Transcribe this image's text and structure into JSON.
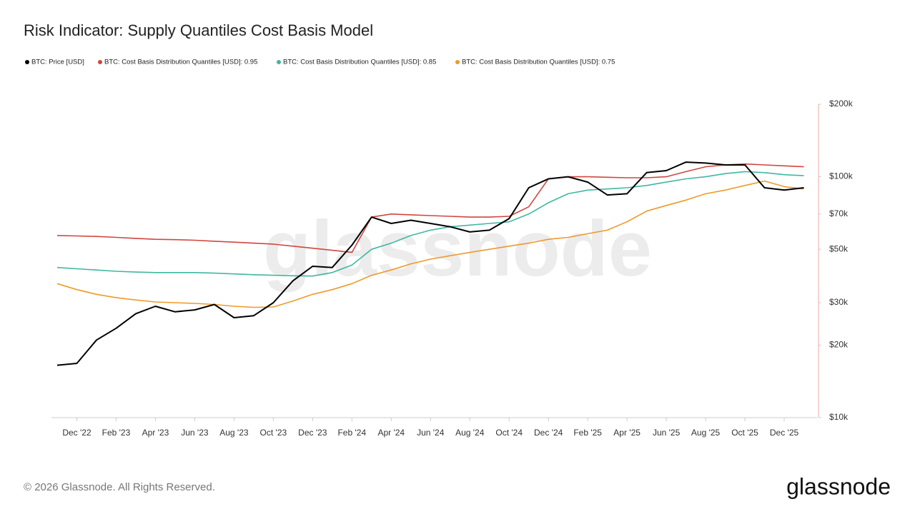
{
  "chart_data": {
    "type": "line",
    "title": "Risk Indicator: Supply Quantiles Cost Basis Model",
    "watermark": "glassnode",
    "copyright": "© 2026 Glassnode. All Rights Reserved.",
    "logo": "glassnode",
    "log_scale": true,
    "x": [
      "2022-11",
      "2022-12",
      "2023-01",
      "2023-02",
      "2023-03",
      "2023-04",
      "2023-05",
      "2023-06",
      "2023-07",
      "2023-08",
      "2023-09",
      "2023-10",
      "2023-11",
      "2023-12",
      "2024-01",
      "2024-02",
      "2024-03",
      "2024-04",
      "2024-05",
      "2024-06",
      "2024-07",
      "2024-08",
      "2024-09",
      "2024-10",
      "2024-11",
      "2024-12",
      "2025-01",
      "2025-02",
      "2025-03",
      "2025-04",
      "2025-05",
      "2025-06",
      "2025-07",
      "2025-08",
      "2025-09",
      "2025-10",
      "2025-11",
      "2025-12",
      "2026-01"
    ],
    "xlim": [
      "2022-11",
      "2026-02"
    ],
    "xticks": [
      {
        "value": "2022-12",
        "label": "Dec '22"
      },
      {
        "value": "2023-02",
        "label": "Feb '23"
      },
      {
        "value": "2023-04",
        "label": "Apr '23"
      },
      {
        "value": "2023-06",
        "label": "Jun '23"
      },
      {
        "value": "2023-08",
        "label": "Aug '23"
      },
      {
        "value": "2023-10",
        "label": "Oct '23"
      },
      {
        "value": "2023-12",
        "label": "Dec '23"
      },
      {
        "value": "2024-02",
        "label": "Feb '24"
      },
      {
        "value": "2024-04",
        "label": "Apr '24"
      },
      {
        "value": "2024-06",
        "label": "Jun '24"
      },
      {
        "value": "2024-08",
        "label": "Aug '24"
      },
      {
        "value": "2024-10",
        "label": "Oct '24"
      },
      {
        "value": "2024-12",
        "label": "Dec '24"
      },
      {
        "value": "2025-02",
        "label": "Feb '25"
      },
      {
        "value": "2025-04",
        "label": "Apr '25"
      },
      {
        "value": "2025-06",
        "label": "Jun '25"
      },
      {
        "value": "2025-08",
        "label": "Aug '25"
      },
      {
        "value": "2025-10",
        "label": "Oct '25"
      },
      {
        "value": "2025-12",
        "label": "Dec '25"
      }
    ],
    "ylim": [
      10000,
      200000
    ],
    "yticks": [
      {
        "value": 10000,
        "label": "$10k"
      },
      {
        "value": 20000,
        "label": "$20k"
      },
      {
        "value": 30000,
        "label": "$30k"
      },
      {
        "value": 50000,
        "label": "$50k"
      },
      {
        "value": 70000,
        "label": "$70k"
      },
      {
        "value": 100000,
        "label": "$100k"
      },
      {
        "value": 200000,
        "label": "$200k"
      }
    ],
    "series": [
      {
        "name": "BTC: Price [USD]",
        "color": "#000000",
        "values": [
          16500,
          16800,
          21000,
          23500,
          27000,
          29000,
          27500,
          28000,
          29500,
          26000,
          26500,
          30000,
          37000,
          42500,
          42000,
          52000,
          68000,
          64000,
          66000,
          64000,
          62000,
          59000,
          60000,
          67000,
          90000,
          98000,
          100000,
          95000,
          84000,
          85000,
          104000,
          106000,
          115000,
          114000,
          112000,
          112000,
          90000,
          88000,
          90000
        ]
      },
      {
        "name": "BTC: Cost Basis Distribution Quantiles [USD]: 0.95",
        "color": "#d0463f",
        "values": [
          57000,
          56800,
          56500,
          56000,
          55500,
          55000,
          54800,
          54500,
          54000,
          53500,
          53000,
          52500,
          51500,
          50500,
          49500,
          48500,
          68000,
          70000,
          69500,
          69000,
          68500,
          68000,
          68000,
          68500,
          75000,
          98000,
          100000,
          100000,
          99500,
          99000,
          99000,
          100000,
          105000,
          110000,
          112000,
          113000,
          112000,
          111000,
          110000
        ]
      },
      {
        "name": "BTC: Cost Basis Distribution Quantiles [USD]: 0.85",
        "color": "#3fb8a0",
        "values": [
          42000,
          41500,
          41000,
          40500,
          40200,
          40000,
          40000,
          40000,
          39800,
          39500,
          39200,
          39000,
          38800,
          38700,
          40000,
          43000,
          50000,
          53000,
          57000,
          60000,
          62000,
          63000,
          64000,
          65000,
          70000,
          78000,
          85000,
          88000,
          89000,
          90000,
          92000,
          95000,
          98000,
          100000,
          103000,
          105000,
          104000,
          102000,
          101000
        ]
      },
      {
        "name": "BTC: Cost Basis Distribution Quantiles [USD]: 0.75",
        "color": "#f0992a",
        "values": [
          36000,
          34000,
          32500,
          31500,
          30800,
          30200,
          30000,
          29800,
          29500,
          29000,
          28700,
          28800,
          30500,
          32500,
          34000,
          36000,
          39000,
          41000,
          43500,
          45500,
          47000,
          48500,
          50000,
          51500,
          53000,
          55000,
          56000,
          58000,
          60000,
          65000,
          72000,
          76000,
          80000,
          85000,
          88000,
          92000,
          96000,
          91000,
          89000
        ]
      }
    ]
  }
}
